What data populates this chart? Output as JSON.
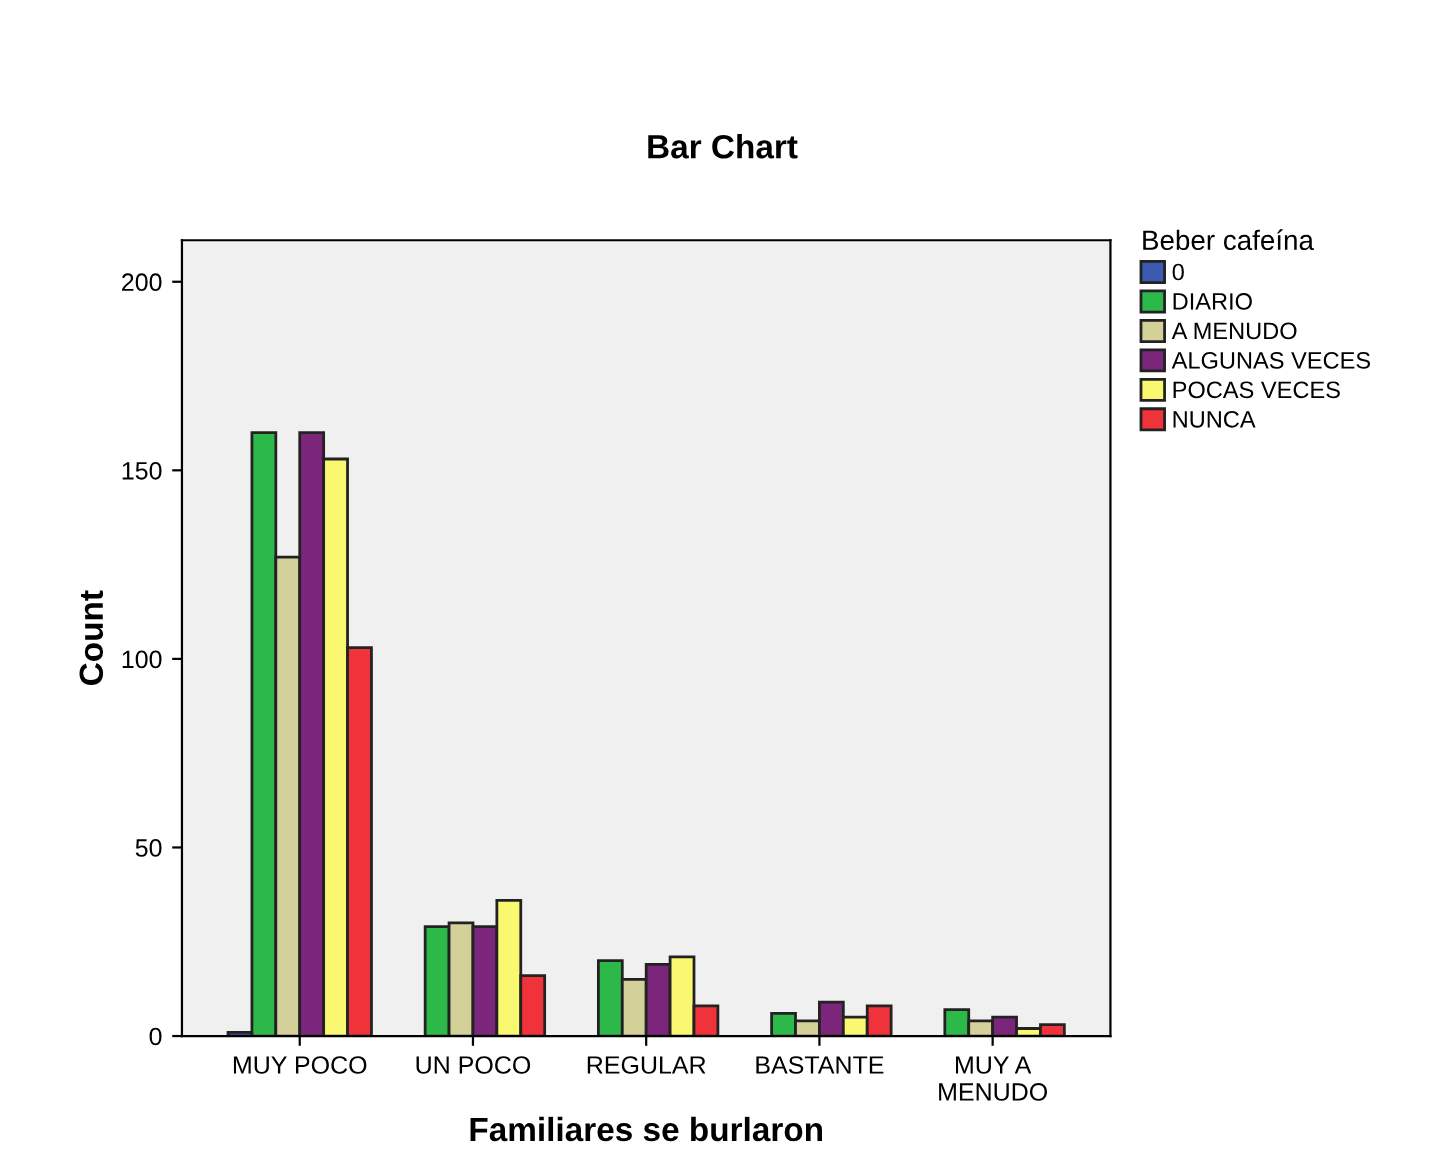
{
  "chart_data": {
    "type": "bar",
    "title": "Bar Chart",
    "xlabel": "Familiares se burlaron",
    "ylabel": "Count",
    "legend_title": "Beber cafeína",
    "categories": [
      "MUY POCO",
      "UN POCO",
      "REGULAR",
      "BASTANTE",
      "MUY A\nMENUDO"
    ],
    "series": [
      {
        "name": "0",
        "color": "#3b5bb0",
        "values": [
          1,
          null,
          null,
          null,
          null
        ]
      },
      {
        "name": "DIARIO",
        "color": "#2db84a",
        "values": [
          160,
          29,
          20,
          6,
          7
        ]
      },
      {
        "name": "A MENUDO",
        "color": "#d4d09a",
        "values": [
          127,
          30,
          15,
          4,
          4
        ]
      },
      {
        "name": "ALGUNAS VECES",
        "color": "#7b267b",
        "values": [
          160,
          29,
          19,
          9,
          5
        ]
      },
      {
        "name": "POCAS VECES",
        "color": "#faf870",
        "values": [
          153,
          36,
          21,
          5,
          2
        ]
      },
      {
        "name": "NUNCA",
        "color": "#f0323a",
        "values": [
          103,
          16,
          8,
          8,
          3
        ]
      }
    ],
    "ylim": [
      0,
      211
    ],
    "yticks": [
      0,
      50,
      100,
      150,
      200
    ],
    "grid": false,
    "legend": "right"
  }
}
